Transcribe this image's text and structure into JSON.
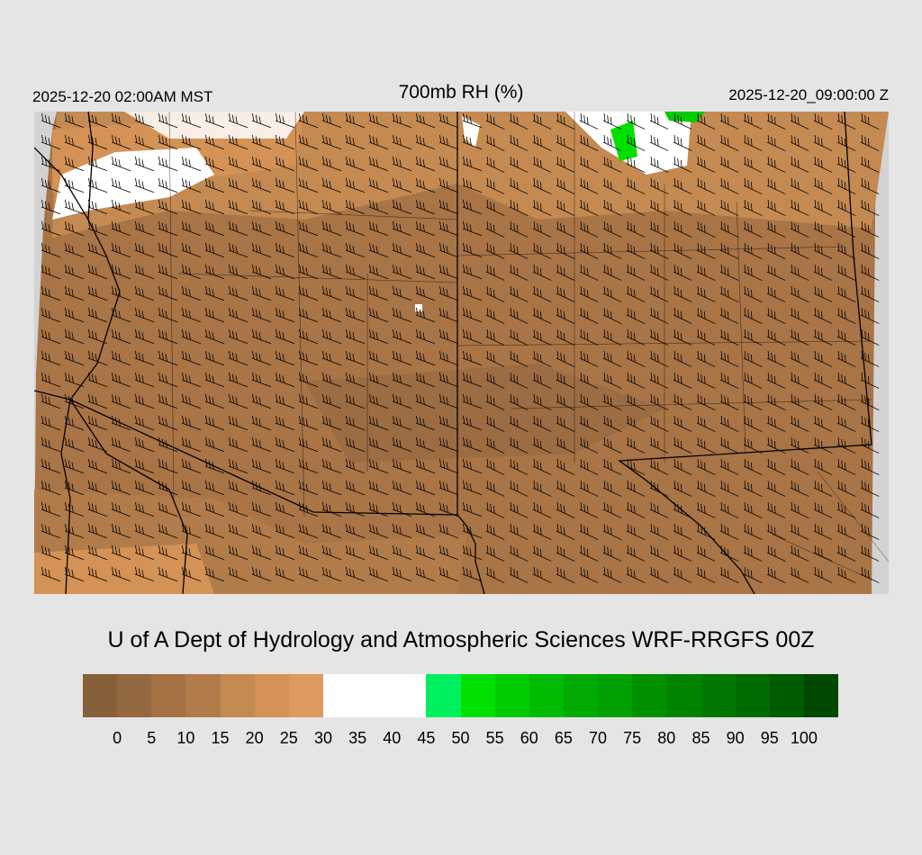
{
  "header": {
    "local_time": "2025-12-20 02:00AM MST",
    "title": "700mb RH (%)",
    "valid_time": "2025-12-20_09:00:00 Z"
  },
  "credit": "U of A Dept of Hydrology and Atmospheric Sciences WRF-RRGFS 00Z",
  "colorbar": {
    "colors": [
      "#87603a",
      "#946840",
      "#a47245",
      "#b27c4a",
      "#c48a52",
      "#d49256",
      "#dc9a5e",
      "#ffffff",
      "#ffffff",
      "#ffffff",
      "#00f060",
      "#00e000",
      "#00cc00",
      "#00bb00",
      "#00aa00",
      "#00a000",
      "#009000",
      "#008400",
      "#007800",
      "#006c00",
      "#005c00",
      "#004800"
    ],
    "labels": [
      "0",
      "5",
      "10",
      "15",
      "20",
      "25",
      "30",
      "35",
      "40",
      "45",
      "50",
      "55",
      "60",
      "65",
      "70",
      "75",
      "80",
      "85",
      "90",
      "95",
      "100"
    ]
  },
  "map": {
    "background": "#a97446",
    "out_of_domain": "#d3d3d3"
  }
}
